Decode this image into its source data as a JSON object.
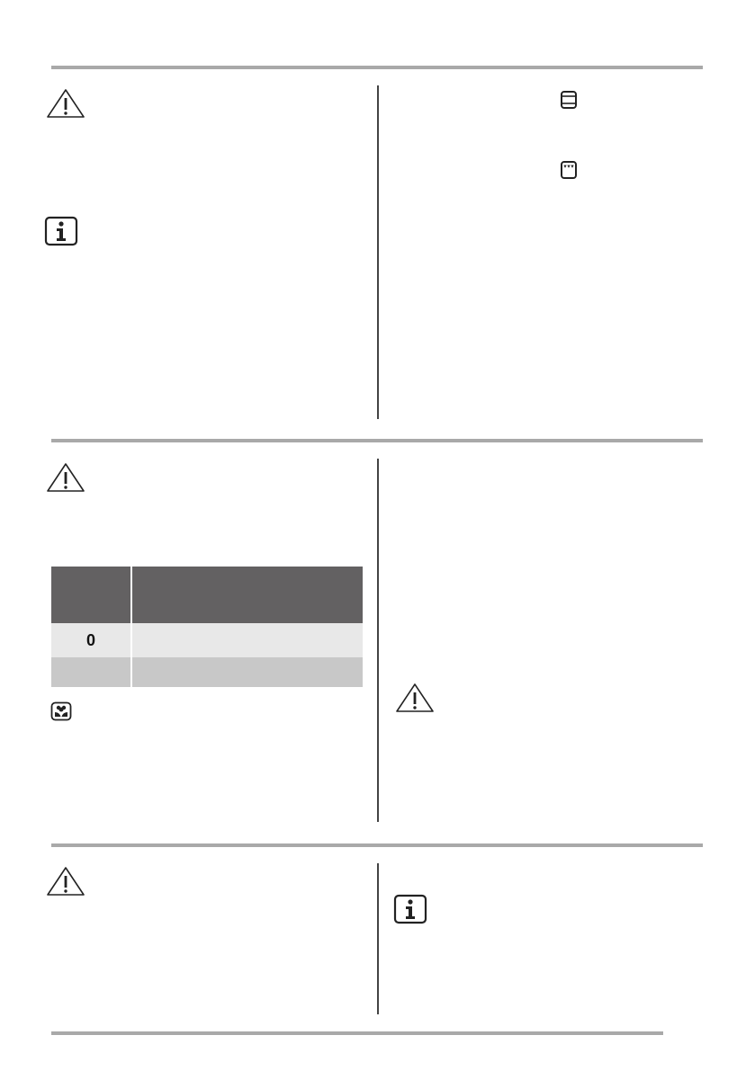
{
  "icons": {
    "warning": "warning-triangle-icon",
    "info": "info-icon",
    "environment": "environment-flower-icon",
    "oven_top_bottom_heat": "oven-top-bottom-heat-icon",
    "oven_top_heat": "oven-top-heat-icon"
  },
  "table": {
    "header_color": "#636162",
    "row_colors": [
      "#e8e8e8",
      "#c8c8c8"
    ],
    "rows": [
      [
        "0",
        ""
      ],
      [
        "",
        ""
      ]
    ]
  }
}
